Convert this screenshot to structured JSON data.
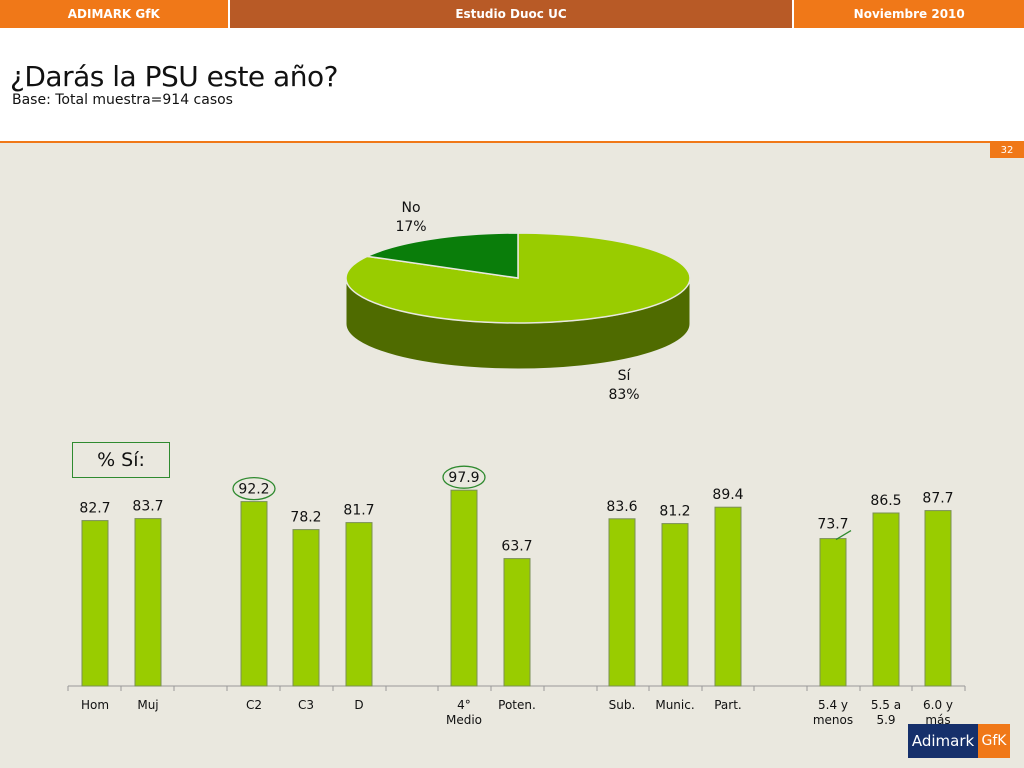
{
  "topbar": {
    "left": "ADIMARK GfK",
    "center": "Estudio Duoc UC",
    "right": "Noviembre 2010"
  },
  "header": {
    "title": "¿Darás la PSU este año?",
    "subtitle": "Base: Total muestra=914 casos"
  },
  "page_number": "32",
  "bar_box_label": "% Sí:",
  "logo": {
    "part1": "Adimark",
    "part2": "GfK"
  },
  "colors": {
    "orange": "#f07818",
    "brown": "#b85a26",
    "bar": "#99cc00",
    "pie_si": "#99cc00",
    "pie_si_side": "#4f6b00",
    "pie_no": "#0a7d0a",
    "circle": "#2f8a2f"
  },
  "chart_data": [
    {
      "type": "pie",
      "labels": [
        "Sí",
        "No"
      ],
      "values": [
        83,
        17
      ],
      "label_texts": [
        [
          "Sí",
          "83%"
        ],
        [
          "No",
          "17%"
        ]
      ]
    },
    {
      "type": "bar",
      "categories": [
        "Hom",
        "Muj",
        "C2",
        "C3",
        "D",
        "4° Medio",
        "Poten.",
        "Sub.",
        "Munic.",
        "Part.",
        "5.4 y menos",
        "5.5 a 5.9",
        "6.0 y más"
      ],
      "category_lines": [
        [
          "Hom"
        ],
        [
          "Muj"
        ],
        [
          "C2"
        ],
        [
          "C3"
        ],
        [
          "D"
        ],
        [
          "4°",
          "Medio"
        ],
        [
          "Poten."
        ],
        [
          "Sub."
        ],
        [
          "Munic."
        ],
        [
          "Part."
        ],
        [
          "5.4 y",
          "menos"
        ],
        [
          "5.5 a",
          "5.9"
        ],
        [
          "6.0 y",
          "más"
        ]
      ],
      "values": [
        82.7,
        83.7,
        92.2,
        78.2,
        81.7,
        97.9,
        63.7,
        83.6,
        81.2,
        89.4,
        73.7,
        86.5,
        87.7
      ],
      "value_labels": [
        "82.7",
        "83.7",
        "92.2",
        "78.2",
        "81.7",
        "97.9",
        "63.7",
        "83.6",
        "81.2",
        "89.4",
        "73.7",
        "86.5",
        "87.7"
      ],
      "highlighted": [
        "C2",
        "4° Medio"
      ],
      "ylim": [
        0,
        100
      ]
    }
  ]
}
